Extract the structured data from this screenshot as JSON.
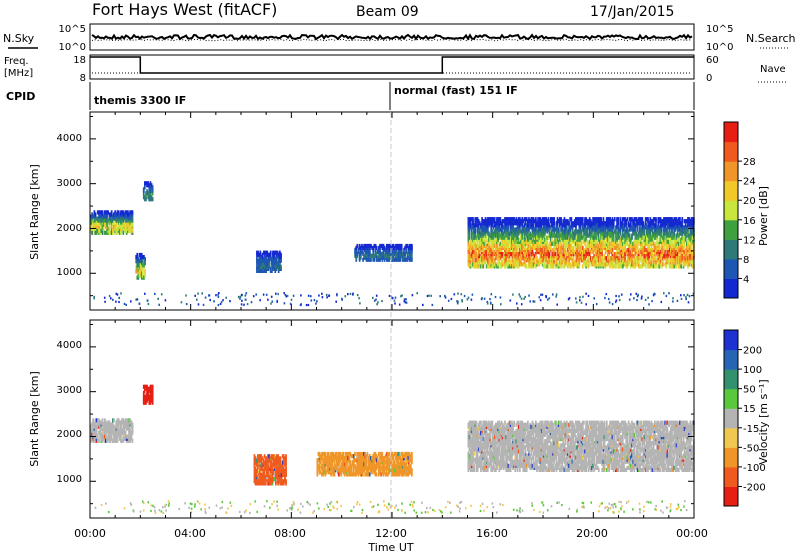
{
  "header": {
    "title": "Fort Hays West (fitACF)",
    "beam": "Beam 09",
    "date": "17/Jan/2015"
  },
  "top_panels": {
    "nsky_label": "N.Sky",
    "nsky_ticks": [
      "10^5",
      "10^0"
    ],
    "nsearch_label": "N.Search",
    "nsearch_ticks": [
      "10^5",
      "10^0"
    ],
    "freq_label_1": "Freq.",
    "freq_label_2": "[MHz]",
    "freq_ticks": [
      "18",
      "8"
    ],
    "nave_label": "Nave",
    "nave_ticks": [
      "60",
      "0"
    ],
    "cpid_label": "CPID",
    "cpid_left": "themis 3300 IF",
    "cpid_right": "normal (fast) 151 IF",
    "freq_series": [
      {
        "start": 0.0,
        "end": 2.0,
        "level": "high"
      },
      {
        "start": 2.0,
        "end": 14.0,
        "level": "low"
      },
      {
        "start": 14.0,
        "end": 24.0,
        "level": "high"
      }
    ]
  },
  "panels": {
    "ylabel": "Slant Range [km]",
    "yticks": [
      "1000",
      "2000",
      "3000",
      "4000"
    ],
    "xticks": [
      "00:00",
      "04:00",
      "08:00",
      "12:00",
      "16:00",
      "20:00",
      "00:00"
    ],
    "xlabel": "Time UT"
  },
  "power_colorbar": {
    "label": "Power [dB]",
    "ticks": [
      "4",
      "8",
      "12",
      "16",
      "20",
      "24",
      "28"
    ],
    "colors": [
      "#1428d2",
      "#1e56b4",
      "#2e7a78",
      "#3fa040",
      "#c8e63c",
      "#f0c828",
      "#f09628",
      "#f05a1e",
      "#e61e14"
    ]
  },
  "velocity_colorbar": {
    "label": "Velocity [m s⁻¹]",
    "ticks": [
      "200",
      "100",
      "50",
      "15",
      "-15",
      "-50",
      "-100",
      "-200"
    ],
    "colors": [
      "#1e32d2",
      "#2864b4",
      "#32916e",
      "#5ac83c",
      "#b4b4b4",
      "#f0c850",
      "#f09628",
      "#f05a1e",
      "#e61e14"
    ]
  },
  "chart_data": {
    "type": "heatmap",
    "x_range_hours": [
      0,
      24
    ],
    "y_range_km": [
      180,
      4600
    ],
    "marker_time_hours": 12.0,
    "power_regions": [
      {
        "t0": 0.0,
        "t1": 1.7,
        "r0": 1950,
        "r1": 2450,
        "peak_db": 20
      },
      {
        "t0": 1.8,
        "t1": 2.2,
        "r0": 950,
        "r1": 1500,
        "peak_db": 22
      },
      {
        "t0": 2.1,
        "t1": 2.5,
        "r0": 2700,
        "r1": 3100,
        "peak_db": 10
      },
      {
        "t0": 6.6,
        "t1": 7.6,
        "r0": 1100,
        "r1": 1550,
        "peak_db": 8
      },
      {
        "t0": 10.5,
        "t1": 12.8,
        "r0": 1350,
        "r1": 1700,
        "peak_db": 6
      },
      {
        "t0": 15.0,
        "t1": 24.0,
        "r0": 1200,
        "r1": 2300,
        "peak_db": 28
      }
    ],
    "velocity_regions": [
      {
        "t0": 0.0,
        "t1": 1.7,
        "r0": 1950,
        "r1": 2450,
        "velocity": 0
      },
      {
        "t0": 2.1,
        "t1": 2.5,
        "r0": 2800,
        "r1": 3200,
        "velocity": -200
      },
      {
        "t0": 6.5,
        "t1": 7.8,
        "r0": 1000,
        "r1": 1650,
        "velocity": -100
      },
      {
        "t0": 9.0,
        "t1": 12.8,
        "r0": 1200,
        "r1": 1700,
        "velocity": -50
      },
      {
        "t0": 15.0,
        "t1": 24.0,
        "r0": 1300,
        "r1": 2400,
        "velocity": 0
      }
    ]
  }
}
